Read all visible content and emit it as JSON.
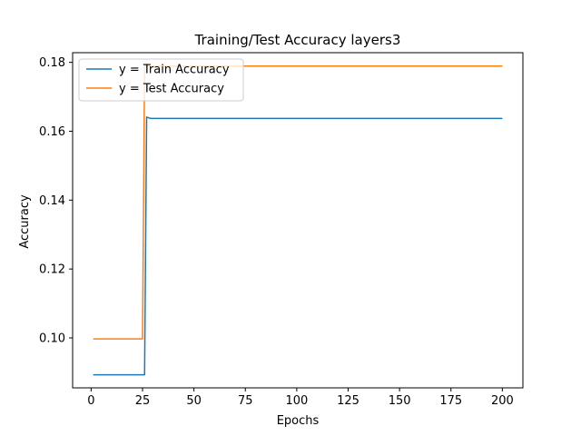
{
  "chart_data": {
    "type": "line",
    "title": "Training/Test Accuracy layers3",
    "xlabel": "Epochs",
    "ylabel": "Accuracy",
    "xlim": [
      -9,
      210
    ],
    "ylim": [
      0.0855,
      0.1828
    ],
    "xticks": [
      0,
      25,
      50,
      75,
      100,
      125,
      150,
      175,
      200
    ],
    "yticks": [
      0.1,
      0.12,
      0.14,
      0.16,
      0.18
    ],
    "ytick_labels": [
      "0.10",
      "0.12",
      "0.14",
      "0.16",
      "0.18"
    ],
    "grid": false,
    "legend_position": "top-left",
    "series": [
      {
        "name": "y = Train Accuracy",
        "color": "#1f77b4",
        "x": [
          1,
          26,
          27,
          28,
          29,
          200
        ],
        "y": [
          0.0893,
          0.0893,
          0.1641,
          0.1639,
          0.1637,
          0.1637
        ]
      },
      {
        "name": "y = Test Accuracy",
        "color": "#ff7f0e",
        "x": [
          1,
          25,
          26,
          27,
          200
        ],
        "y": [
          0.0997,
          0.0997,
          0.1789,
          0.1789,
          0.1789
        ]
      }
    ]
  }
}
